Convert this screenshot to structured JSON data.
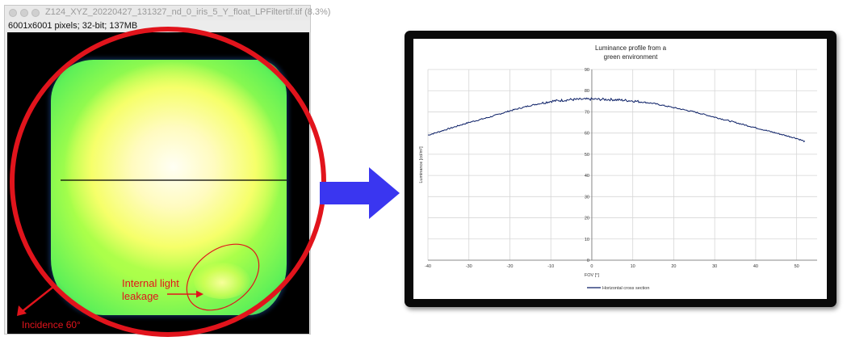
{
  "image_window": {
    "title": "Z124_XYZ_20220427_131327_nd_0_iris_5_Y_float_LPFiltertif.tif (8.3%)",
    "info": "6001x6001 pixels; 32-bit; 137MB"
  },
  "annotations": {
    "leak_label_line1": "Internal light",
    "leak_label_line2": "leakage",
    "incidence_label": "Incidence 60°",
    "annotation_color": "#e1141c",
    "arrow_color": "#3a36f0"
  },
  "chart_data": {
    "type": "line",
    "title": "Luminance profile from a green environment",
    "title_line1": "Luminance profile from a",
    "title_line2": "green environment",
    "xlabel": "FOV [°]",
    "ylabel": "Luminance [cd/m²]",
    "xlim": [
      -40,
      55
    ],
    "ylim": [
      0,
      90
    ],
    "x_ticks": [
      -40,
      -30,
      -20,
      -10,
      0,
      10,
      20,
      30,
      40,
      50
    ],
    "y_ticks": [
      0,
      10,
      20,
      30,
      40,
      50,
      60,
      70,
      80,
      90
    ],
    "grid": true,
    "legend_position": "bottom",
    "series": [
      {
        "name": "Horizontal cross section",
        "color": "#0b1f66",
        "x": [
          -40,
          -35,
          -30,
          -25,
          -20,
          -15,
          -10,
          -5,
          0,
          5,
          10,
          15,
          20,
          25,
          30,
          35,
          40,
          45,
          50,
          52
        ],
        "y": [
          59,
          62,
          65,
          67.5,
          70.5,
          73,
          75,
          75.8,
          76,
          75.8,
          75.2,
          74,
          72,
          70,
          67.5,
          65,
          62.5,
          60,
          57.5,
          56
        ]
      }
    ]
  }
}
